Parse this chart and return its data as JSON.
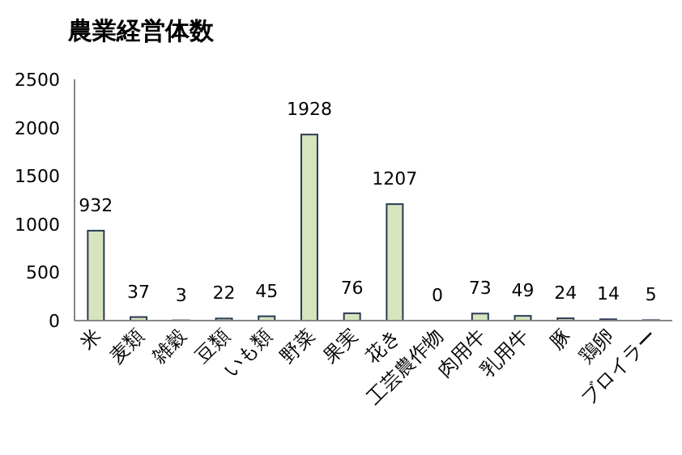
{
  "chart_data": {
    "type": "bar",
    "title": "農業経営体数",
    "categories": [
      "米",
      "麦類",
      "雑穀",
      "豆類",
      "いも類",
      "野菜",
      "果実",
      "花き",
      "工芸農作物",
      "肉用牛",
      "乳用牛",
      "豚",
      "鶏卵",
      "ブロイラー"
    ],
    "values": [
      932,
      37,
      3,
      22,
      45,
      1928,
      76,
      1207,
      0,
      73,
      49,
      24,
      14,
      5
    ],
    "color": "#d7e4bd",
    "ylim": [
      0,
      2500
    ],
    "yticks": [
      0,
      500,
      1000,
      1500,
      2000,
      2500
    ],
    "data_labels": true
  }
}
